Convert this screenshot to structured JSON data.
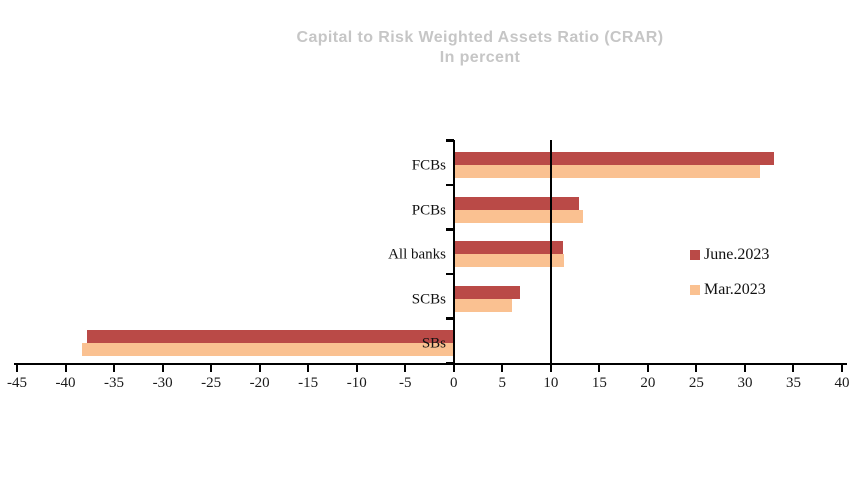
{
  "title": {
    "line1": "Capital to Risk Weighted Assets Ratio (CRAR)",
    "line2": "In percent"
  },
  "colors": {
    "title_gray": "#C6C6C6",
    "axis_black": "#000000",
    "june_red": "#BA4A47",
    "mar_orange": "#FAC191"
  },
  "chart_data": {
    "type": "bar",
    "orientation": "horizontal",
    "title": "Capital to Risk Weighted Assets Ratio (CRAR)",
    "subtitle": "In percent",
    "categories": [
      "FCBs",
      "PCBs",
      "All banks",
      "SCBs",
      "SBs"
    ],
    "series": [
      {
        "name": "June.2023",
        "color": "#BA4A47",
        "values": [
          33.0,
          12.9,
          11.3,
          6.8,
          -37.8
        ]
      },
      {
        "name": "Mar.2023",
        "color": "#FAC191",
        "values": [
          31.6,
          13.3,
          11.4,
          6.0,
          -38.3
        ]
      }
    ],
    "xlim": [
      -45,
      40
    ],
    "x_tick_step": 5,
    "x_ticks": [
      -45,
      -40,
      -35,
      -30,
      -25,
      -20,
      -15,
      -10,
      -5,
      0,
      5,
      10,
      15,
      20,
      25,
      30,
      35,
      40
    ],
    "reference_line_x": 10,
    "grid": false,
    "legend_position": "right-middle"
  }
}
